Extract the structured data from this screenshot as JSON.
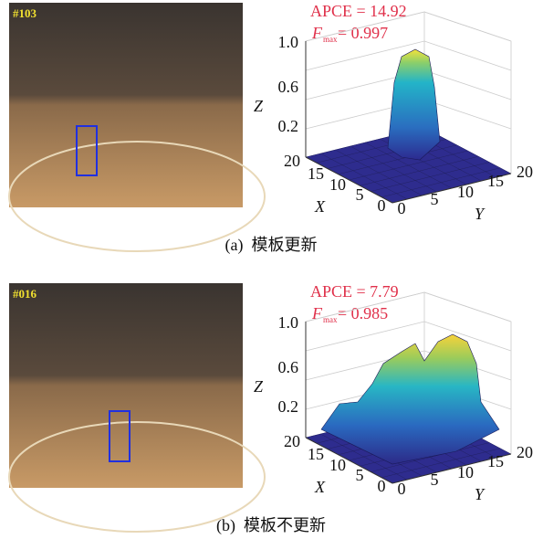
{
  "panels": [
    {
      "frame_label": "#103",
      "apce": "APCE = 14.92",
      "fmax_symbol": "F",
      "fmax_sub": "max",
      "fmax_value": "= 0.997",
      "z_label": "Z",
      "x_label": "X",
      "y_label": "Y",
      "z_ticks": [
        "1.0",
        "0.6",
        "0.2"
      ],
      "x_ticks": [
        "20",
        "15",
        "10",
        "5",
        "0"
      ],
      "y_ticks": [
        "0",
        "5",
        "10",
        "15",
        "20"
      ],
      "caption": "(a)  模板更新"
    },
    {
      "frame_label": "#016",
      "apce": "APCE = 7.79",
      "fmax_symbol": "F",
      "fmax_sub": "max",
      "fmax_value": "= 0.985",
      "z_label": "Z",
      "x_label": "X",
      "y_label": "Y",
      "z_ticks": [
        "1.0",
        "0.6",
        "0.2"
      ],
      "x_ticks": [
        "20",
        "15",
        "10",
        "5",
        "0"
      ],
      "y_ticks": [
        "0",
        "5",
        "10",
        "15",
        "20"
      ],
      "caption": "(b)  模板不更新"
    }
  ]
}
